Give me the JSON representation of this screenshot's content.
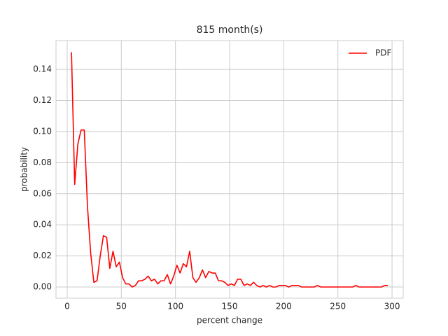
{
  "chart_data": {
    "type": "line",
    "title": "815 month(s)",
    "x_label": "percent change",
    "y_label": "probability",
    "x": [
      4,
      6.95,
      9.9,
      12.85,
      15.8,
      18.75,
      21.7,
      24.65,
      27.6,
      30.55,
      33.5,
      36.45,
      39.4,
      42.35,
      45.3,
      48.25,
      51.2,
      54.15,
      57.1,
      60.05,
      63,
      65.95,
      68.9,
      71.85,
      74.8,
      77.75,
      80.7,
      83.65,
      86.6,
      89.55,
      92.5,
      95.45,
      98.4,
      101.35,
      104.3,
      107.25,
      110.2,
      113.15,
      116.1,
      119.05,
      122,
      124.95,
      127.9,
      130.85,
      133.8,
      136.75,
      139.7,
      142.65,
      145.6,
      148.55,
      151.5,
      154.45,
      157.4,
      160.35,
      163.3,
      166.25,
      169.2,
      172.15,
      175.1,
      178.05,
      181,
      183.95,
      186.9,
      189.85,
      192.8,
      195.75,
      198.7,
      201.65,
      204.6,
      207.55,
      210.5,
      213.45,
      216.4,
      219.35,
      222.3,
      225.25,
      228.2,
      231.15,
      234.1,
      237.05,
      240,
      242.95,
      245.9,
      248.85,
      251.8,
      254.75,
      257.7,
      260.65,
      263.6,
      266.55,
      269.5,
      272.45,
      275.4,
      278.35,
      281.3,
      284.25,
      287.2,
      290.15,
      293.1,
      296.05
    ],
    "series": [
      {
        "name": "PDF",
        "color": "#ff0000",
        "values": [
          0.151,
          0.066,
          0.092,
          0.101,
          0.101,
          0.052,
          0.022,
          0.003,
          0.004,
          0.02,
          0.033,
          0.032,
          0.012,
          0.023,
          0.013,
          0.016,
          0.006,
          0.002,
          0.002,
          0,
          0.001,
          0.004,
          0.004,
          0.005,
          0.007,
          0.004,
          0.005,
          0.002,
          0.004,
          0.004,
          0.008,
          0.002,
          0.007,
          0.014,
          0.009,
          0.015,
          0.013,
          0.023,
          0.006,
          0.003,
          0.006,
          0.011,
          0.006,
          0.01,
          0.009,
          0.009,
          0.004,
          0.004,
          0.003,
          0.001,
          0.002,
          0.001,
          0.005,
          0.005,
          0.001,
          0.002,
          0.001,
          0.003,
          0.001,
          0,
          0.001,
          0,
          0.001,
          0,
          0,
          0.001,
          0.001,
          0.001,
          0,
          0.001,
          0.001,
          0.001,
          0,
          0,
          0,
          0,
          0,
          0.001,
          0,
          0,
          0,
          0,
          0,
          0,
          0,
          0,
          0,
          0,
          0,
          0.001,
          0,
          0,
          0,
          0,
          0,
          0,
          0,
          0,
          0.001,
          0.001
        ]
      }
    ],
    "xlim": [
      -10.3,
      310.3
    ],
    "ylim": [
      -0.0072,
      0.1585
    ],
    "xticks": [
      0,
      50,
      100,
      150,
      200,
      250,
      300
    ],
    "yticks": [
      {
        "value": 0,
        "label": "0.00"
      },
      {
        "value": 0.02,
        "label": "0.02"
      },
      {
        "value": 0.04,
        "label": "0.04"
      },
      {
        "value": 0.06,
        "label": "0.06"
      },
      {
        "value": 0.08,
        "label": "0.08"
      },
      {
        "value": 0.1,
        "label": "0.10"
      },
      {
        "value": 0.12,
        "label": "0.12"
      },
      {
        "value": 0.14,
        "label": "0.14"
      }
    ],
    "grid": true,
    "legend": "upper right"
  }
}
